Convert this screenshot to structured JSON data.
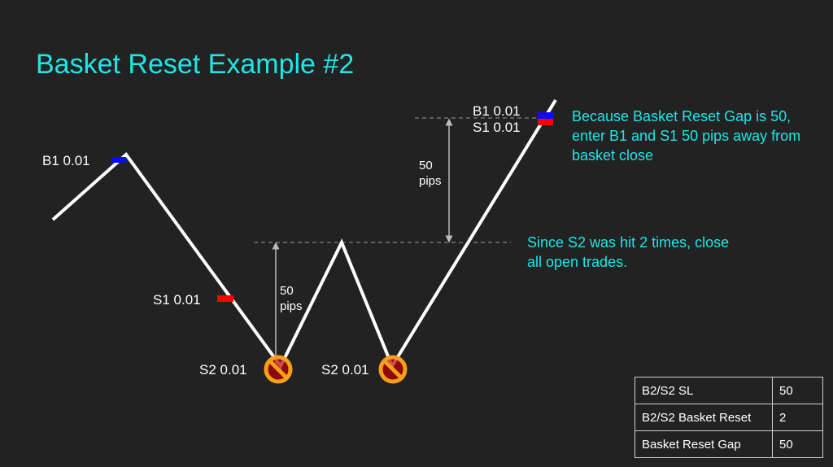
{
  "title": "Basket Reset Example #2",
  "labels": {
    "b1_left": "B1  0.01",
    "s1_left": "S1  0.01",
    "s2_first": "S2  0.01",
    "s2_second": "S2  0.01",
    "b1_right": "B1  0.01",
    "s1_right": "S1  0.01",
    "gap_upper": [
      "50",
      "pips"
    ],
    "gap_lower": [
      "50",
      "pips"
    ]
  },
  "notes": {
    "reset_gap": [
      "Because Basket Reset Gap is 50,",
      "enter B1 and S1 50 pips away from",
      "basket close"
    ],
    "close_all": [
      "Since S2 was hit 2 times, close",
      "all open trades."
    ]
  },
  "settings_table": [
    {
      "key": "B2/S2 SL",
      "value": "50"
    },
    {
      "key": "B2/S2 Basket Reset",
      "value": "2"
    },
    {
      "key": "Basket Reset Gap",
      "value": "50"
    }
  ],
  "colors": {
    "title": "#1ee6e6",
    "buy": "#0a0aff",
    "sell": "#ff0000",
    "stop_icon": "#f5a01a"
  },
  "icons": [
    "no-entry-icon",
    "no-entry-icon"
  ]
}
